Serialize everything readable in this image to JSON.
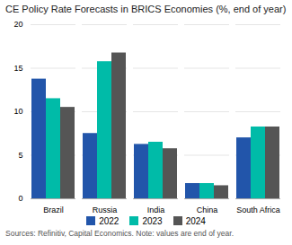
{
  "chart_data": {
    "type": "bar",
    "title": "CE Policy Rate Forecasts in BRICS Economies (%, end of year)",
    "categories": [
      "Brazil",
      "Russia",
      "India",
      "China",
      "South Africa"
    ],
    "series": [
      {
        "name": "2022",
        "color": "#2255aa",
        "values": [
          13.75,
          7.5,
          6.25,
          1.75,
          7.0
        ]
      },
      {
        "name": "2023",
        "color": "#00bba8",
        "values": [
          11.5,
          15.75,
          6.5,
          1.75,
          8.25
        ]
      },
      {
        "name": "2024",
        "color": "#555555",
        "values": [
          10.5,
          16.75,
          5.75,
          1.5,
          8.25
        ]
      }
    ],
    "ylim": [
      0,
      20
    ],
    "yticks": [
      0,
      5,
      10,
      15,
      20
    ],
    "grid": true,
    "legend": "bottom",
    "annotations": [
      "Sources: Refinitiv, Capital Economics. Note: values are end of year."
    ]
  }
}
